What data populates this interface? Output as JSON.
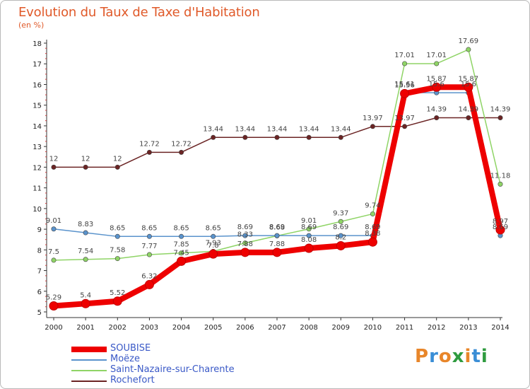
{
  "title": "Evolution du Taux de Taxe d'Habitation",
  "subtitle": "(en %)",
  "logo": {
    "text": "Proxiti",
    "colors": [
      "#e8862a",
      "#3a8ed6",
      "#e8862a",
      "#2f9b3f",
      "#e8862a",
      "#3a8ed6",
      "#2f9b3f"
    ]
  },
  "chart_data": {
    "type": "line",
    "title": "Evolution du Taux de Taxe d'Habitation",
    "subtitle": "(en %)",
    "x": [
      "2000",
      "2001",
      "2002",
      "2003",
      "2004",
      "2005",
      "2006",
      "2007",
      "2008",
      "2009",
      "2010",
      "2011",
      "2012",
      "2013",
      "2014"
    ],
    "ylim": [
      5,
      18
    ],
    "yticks": [
      5,
      6,
      7,
      8,
      9,
      10,
      11,
      12,
      13,
      14,
      15,
      16,
      17,
      18
    ],
    "grid": false,
    "legend_position": "bottom-left",
    "series": [
      {
        "name": "Rochefort",
        "color": "#6b2424",
        "values": [
          12,
          12,
          12,
          12.72,
          12.72,
          13.44,
          13.44,
          13.44,
          13.44,
          13.44,
          13.97,
          13.97,
          14.39,
          14.39,
          14.39
        ],
        "labels": [
          "12",
          "12",
          "12",
          "12.72",
          "12.72",
          "13.44",
          "13.44",
          "13.44",
          "13.44",
          "13.44",
          "13.97",
          "13.97",
          "14.39",
          "14.39",
          "14.39"
        ]
      },
      {
        "name": "Saint-Nazaire-sur-Charente",
        "color": "#8fd466",
        "values": [
          7.5,
          7.54,
          7.58,
          7.77,
          7.85,
          7.93,
          8.33,
          8.68,
          9.01,
          9.37,
          9.74,
          17.01,
          17.01,
          17.69,
          11.18
        ],
        "labels": [
          "7.5",
          "7.54",
          "7.58",
          "7.77",
          "7.85",
          "7.93",
          "8.33",
          "8.68",
          "9.01",
          "9.37",
          "9.74",
          "17.01",
          "17.01",
          "17.69",
          "11.18"
        ]
      },
      {
        "name": "Moëze",
        "color": "#5a93cc",
        "values": [
          9.01,
          8.83,
          8.65,
          8.65,
          8.65,
          8.65,
          8.69,
          8.69,
          8.69,
          8.69,
          8.69,
          15.61,
          15.6,
          15.6,
          8.69
        ],
        "labels": [
          "9.01",
          "8.83",
          "8.65",
          "8.65",
          "8.65",
          "8.65",
          "8.69",
          "8.69",
          "8.69",
          "8.69",
          "8.69",
          "15.61",
          "15.6",
          "15.6",
          "8.69"
        ]
      },
      {
        "name": "SOUBISE",
        "color": "#ee0000",
        "values": [
          5.29,
          5.4,
          5.52,
          6.32,
          7.45,
          7.8,
          7.88,
          7.88,
          8.08,
          8.2,
          8.38,
          15.56,
          15.87,
          15.87,
          8.97
        ],
        "labels": [
          "5.29",
          "5.4",
          "5.52",
          "6.32",
          "7.45",
          "7.8",
          "7.88",
          "7.88",
          "8.08",
          "8.2",
          "8.38",
          "15.56",
          "15.87",
          "15.87",
          "8.97"
        ]
      }
    ]
  },
  "legend": [
    {
      "name": "SOUBISE",
      "color": "#ee0000"
    },
    {
      "name": "Moëze",
      "color": "#5a93cc"
    },
    {
      "name": "Saint-Nazaire-sur-Charente",
      "color": "#8fd466"
    },
    {
      "name": "Rochefort",
      "color": "#6b2424"
    }
  ]
}
